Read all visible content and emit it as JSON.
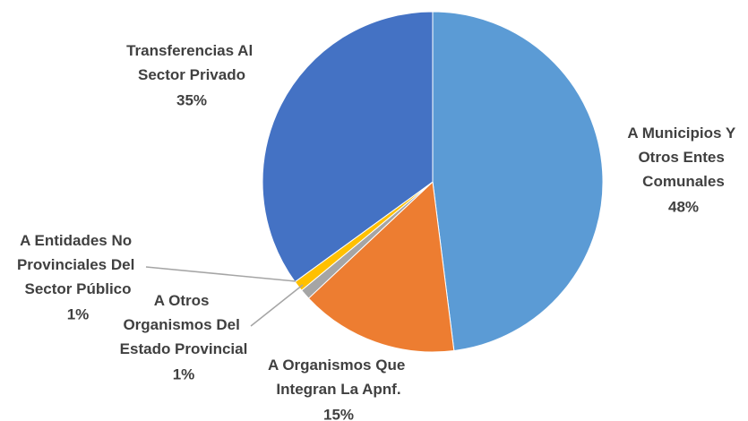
{
  "chart_data": {
    "type": "pie",
    "categories": [
      "A Municipios Y Otros Entes Comunales",
      "A Organismos Que Integran La Apnf.",
      "A Otros Organismos Del Estado Provincial",
      "A Entidades No Provinciales Del Sector Público",
      "Transferencias Al Sector Privado"
    ],
    "values": [
      48,
      15,
      1,
      1,
      35
    ],
    "value_labels": [
      "48%",
      "15%",
      "1%",
      "1%",
      "35%"
    ],
    "colors": [
      "#5b9bd5",
      "#ed7d31",
      "#a5a5a5",
      "#ffc000",
      "#4472c4"
    ]
  }
}
